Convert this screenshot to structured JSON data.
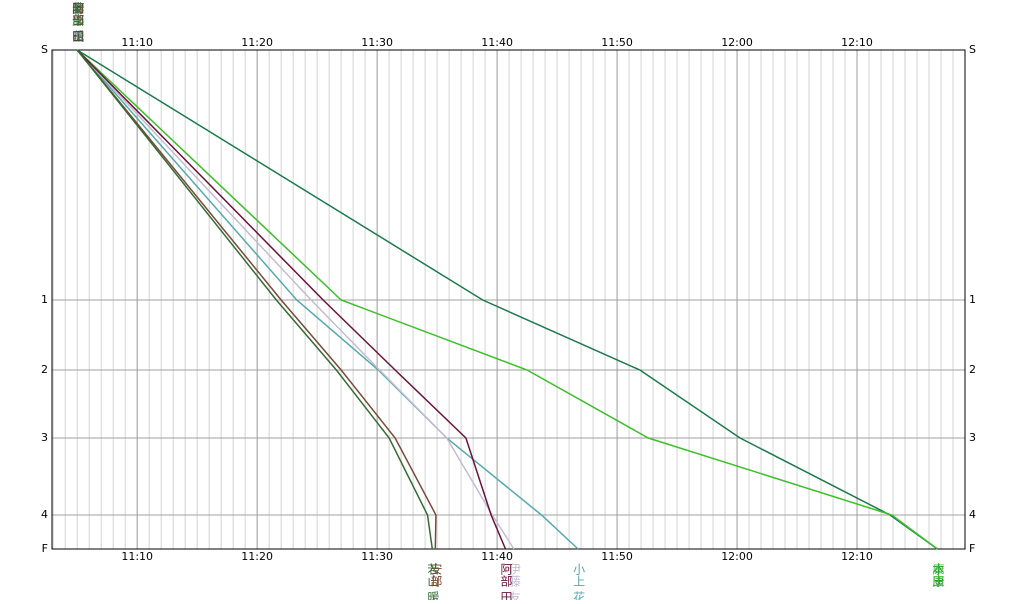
{
  "chart_data": {
    "type": "line",
    "xlim": [
      2.9,
      79
    ],
    "ylim": [
      0,
      499
    ],
    "xticks": [
      {
        "value": 10,
        "label": "11:10"
      },
      {
        "value": 20,
        "label": "11:20"
      },
      {
        "value": 30,
        "label": "11:30"
      },
      {
        "value": 40,
        "label": "11:40"
      },
      {
        "value": 50,
        "label": "11:50"
      },
      {
        "value": 60,
        "label": "12:00"
      },
      {
        "value": 70,
        "label": "12:10"
      }
    ],
    "yticks": [
      {
        "value": 0,
        "label": "S"
      },
      {
        "value": 250,
        "label": "1"
      },
      {
        "value": 320,
        "label": "2"
      },
      {
        "value": 388,
        "label": "3"
      },
      {
        "value": 465,
        "label": "4"
      },
      {
        "value": 499,
        "label": "F"
      }
    ],
    "grid": true,
    "series": [
      {
        "name": "本康",
        "color": "#1b7a4c",
        "x": [
          5,
          38.8,
          51.9,
          60.25,
          72.75,
          76.7
        ],
        "values": [
          0,
          250,
          320,
          388,
          465,
          499
        ]
      },
      {
        "name": "康田",
        "color": "#3cbf28",
        "x": [
          5,
          27,
          42.5,
          52.6,
          72.9,
          76.7
        ],
        "values": [
          0,
          250,
          320,
          388,
          465,
          499
        ]
      },
      {
        "name": "小上 花",
        "color": "#55a9ad",
        "x": [
          5,
          23.3,
          30.1,
          35.8,
          43.7,
          46.75
        ],
        "values": [
          0,
          250,
          320,
          388,
          465,
          499
        ]
      },
      {
        "name": "伊藤 友",
        "color": "#c4bcd2",
        "x": [
          5,
          24.5,
          30.2,
          35.8,
          39.6,
          41.4
        ],
        "values": [
          0,
          250,
          320,
          388,
          465,
          499
        ]
      },
      {
        "name": "阿部 田",
        "color": "#6a1238",
        "x": [
          5,
          25.5,
          31.5,
          37.4,
          39.5,
          40.7
        ],
        "values": [
          0,
          250,
          320,
          388,
          465,
          499
        ]
      },
      {
        "name": "安部",
        "color": "#7a4a3a",
        "x": [
          5,
          22.0,
          27.0,
          31.5,
          34.9,
          34.85
        ],
        "values": [
          0,
          250,
          320,
          388,
          465,
          499
        ]
      },
      {
        "name": "若山 暖",
        "color": "#356b33",
        "x": [
          5,
          21.6,
          26.6,
          31.0,
          34.2,
          34.6
        ],
        "values": [
          0,
          250,
          320,
          388,
          465,
          499
        ]
      }
    ]
  }
}
